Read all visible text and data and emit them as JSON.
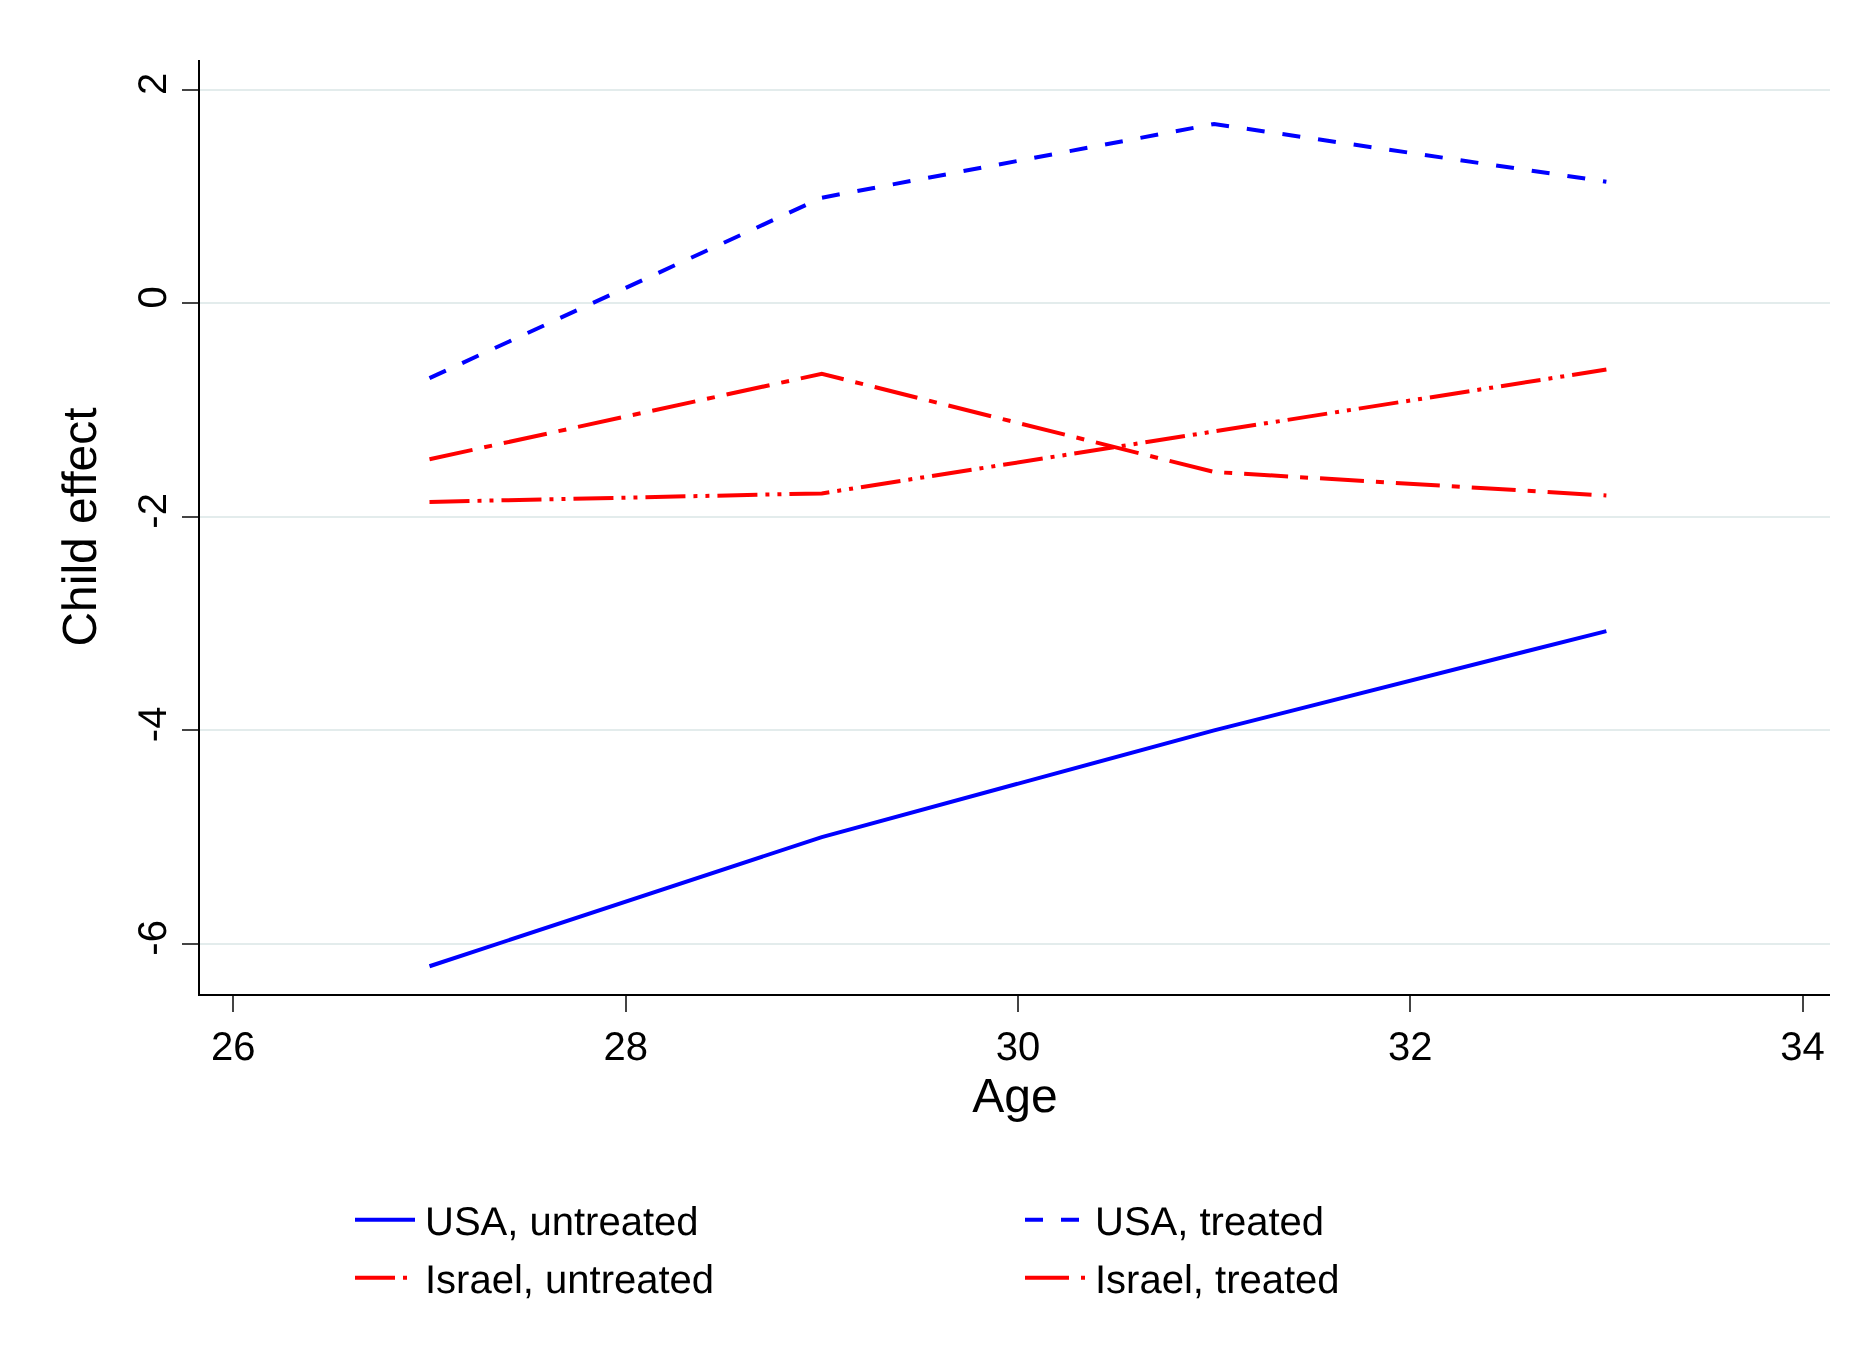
{
  "chart_data": {
    "type": "line",
    "xlabel": "Age",
    "ylabel": "Child effect",
    "x": [
      27,
      29,
      31,
      33
    ],
    "series": [
      {
        "name": "USA, untreated",
        "color": "#0000ff",
        "line_style": "solid",
        "values": [
          -6.21,
          -5.0,
          -4.0,
          -3.07
        ]
      },
      {
        "name": "USA, treated",
        "color": "#0000ff",
        "line_style": "dashed",
        "values": [
          -0.7,
          0.99,
          1.68,
          1.14
        ]
      },
      {
        "name": "Israel, untreated",
        "color": "#ff0000",
        "line_style": "dashdotdot",
        "values": [
          -1.86,
          -1.78,
          -1.2,
          -0.62
        ]
      },
      {
        "name": "Israel, treated",
        "color": "#ff0000",
        "line_style": "longdashdot",
        "values": [
          -1.46,
          -0.66,
          -1.58,
          -1.8
        ]
      }
    ],
    "xlim": [
      25.83,
      34.14
    ],
    "xticks": [
      26,
      28,
      30,
      32,
      34
    ],
    "ylim": [
      -6.47,
      2.28
    ],
    "yticks": [
      -6,
      -4,
      -2,
      0,
      2
    ],
    "grid": "y",
    "legend": "bottom",
    "marker": "none"
  }
}
